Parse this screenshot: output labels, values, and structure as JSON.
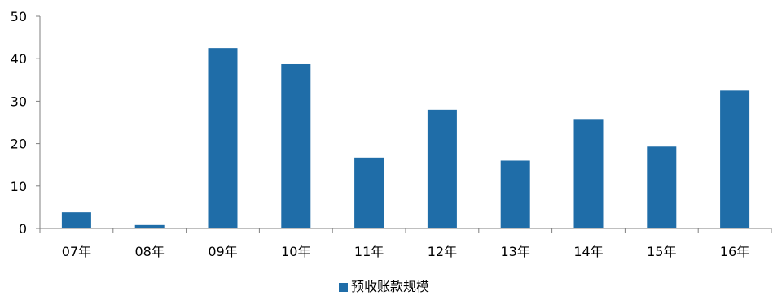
{
  "chart_data": {
    "type": "bar",
    "categories": [
      "07年",
      "08年",
      "09年",
      "10年",
      "11年",
      "12年",
      "13年",
      "14年",
      "15年",
      "16年"
    ],
    "series": [
      {
        "name": "预收账款规模",
        "values": [
          3.8,
          0.8,
          42.5,
          38.7,
          16.7,
          28.0,
          16.0,
          25.8,
          19.3,
          32.5
        ],
        "color": "#1F6DA8"
      }
    ],
    "ylim": [
      0,
      50
    ],
    "yticks": [
      0,
      10,
      20,
      30,
      40,
      50
    ],
    "title": "",
    "xlabel": "",
    "ylabel": "",
    "grid": false,
    "legend_position": "bottom-center"
  }
}
